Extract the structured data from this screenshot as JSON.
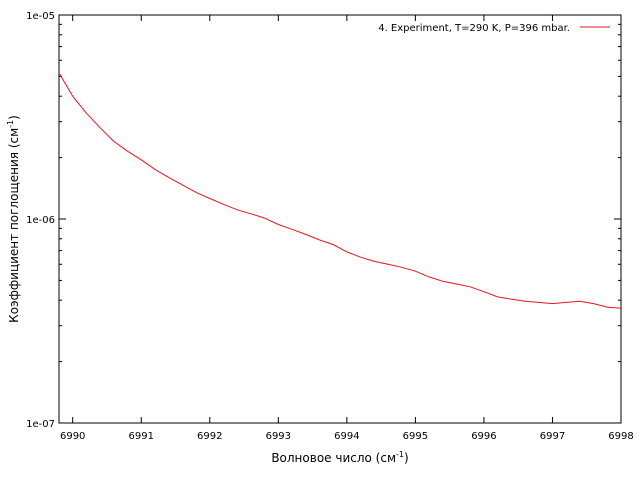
{
  "chart_data": {
    "type": "line",
    "title": "",
    "xlabel": "Волновое число (см",
    "xlabel_sup": "-1",
    "xlabel_close": ")",
    "ylabel": "Коэффициент поглощения (см",
    "ylabel_sup": "-1",
    "ylabel_close": ")",
    "xlim": [
      6989.8,
      6998
    ],
    "ylim": [
      1e-07,
      1e-05
    ],
    "yscale": "log",
    "grid": false,
    "legend_position": "top-right",
    "x_ticks": [
      6990,
      6991,
      6992,
      6993,
      6994,
      6995,
      6996,
      6997,
      6998
    ],
    "x_tick_labels": [
      "6990",
      "6991",
      "6992",
      "6993",
      "6994",
      "6995",
      "6996",
      "6997",
      "6998"
    ],
    "y_ticks": [
      1e-07,
      1e-06,
      1e-05
    ],
    "y_tick_labels": [
      "1e-07",
      "1e-06",
      "1e-05"
    ],
    "series": [
      {
        "name": "4. Experiment, T=290 K, P=396 mbar.",
        "color": "#e8141e",
        "x": [
          6989.8,
          6990.0,
          6990.2,
          6990.4,
          6990.6,
          6990.8,
          6991.0,
          6991.2,
          6991.4,
          6991.6,
          6991.8,
          6992.0,
          6992.2,
          6992.4,
          6992.6,
          6992.8,
          6993.0,
          6993.2,
          6993.4,
          6993.6,
          6993.8,
          6994.0,
          6994.2,
          6994.4,
          6994.6,
          6994.8,
          6995.0,
          6995.2,
          6995.4,
          6995.6,
          6995.8,
          6996.0,
          6996.2,
          6996.4,
          6996.6,
          6996.8,
          6997.0,
          6997.2,
          6997.4,
          6997.6,
          6997.8,
          6998.0
        ],
        "y": [
          5.2e-06,
          4e-06,
          3.3e-06,
          2.8e-06,
          2.4e-06,
          2.15e-06,
          1.95e-06,
          1.75e-06,
          1.6e-06,
          1.47e-06,
          1.35e-06,
          1.26e-06,
          1.18e-06,
          1.11e-06,
          1.06e-06,
          1.01e-06,
          9.4e-07,
          8.9e-07,
          8.4e-07,
          7.9e-07,
          7.5e-07,
          6.9e-07,
          6.5e-07,
          6.2e-07,
          6e-07,
          5.8e-07,
          5.55e-07,
          5.2e-07,
          4.95e-07,
          4.8e-07,
          4.65e-07,
          4.4e-07,
          4.15e-07,
          4.05e-07,
          3.95e-07,
          3.9e-07,
          3.85e-07,
          3.9e-07,
          3.95e-07,
          3.85e-07,
          3.7e-07,
          3.65e-07
        ]
      }
    ]
  }
}
